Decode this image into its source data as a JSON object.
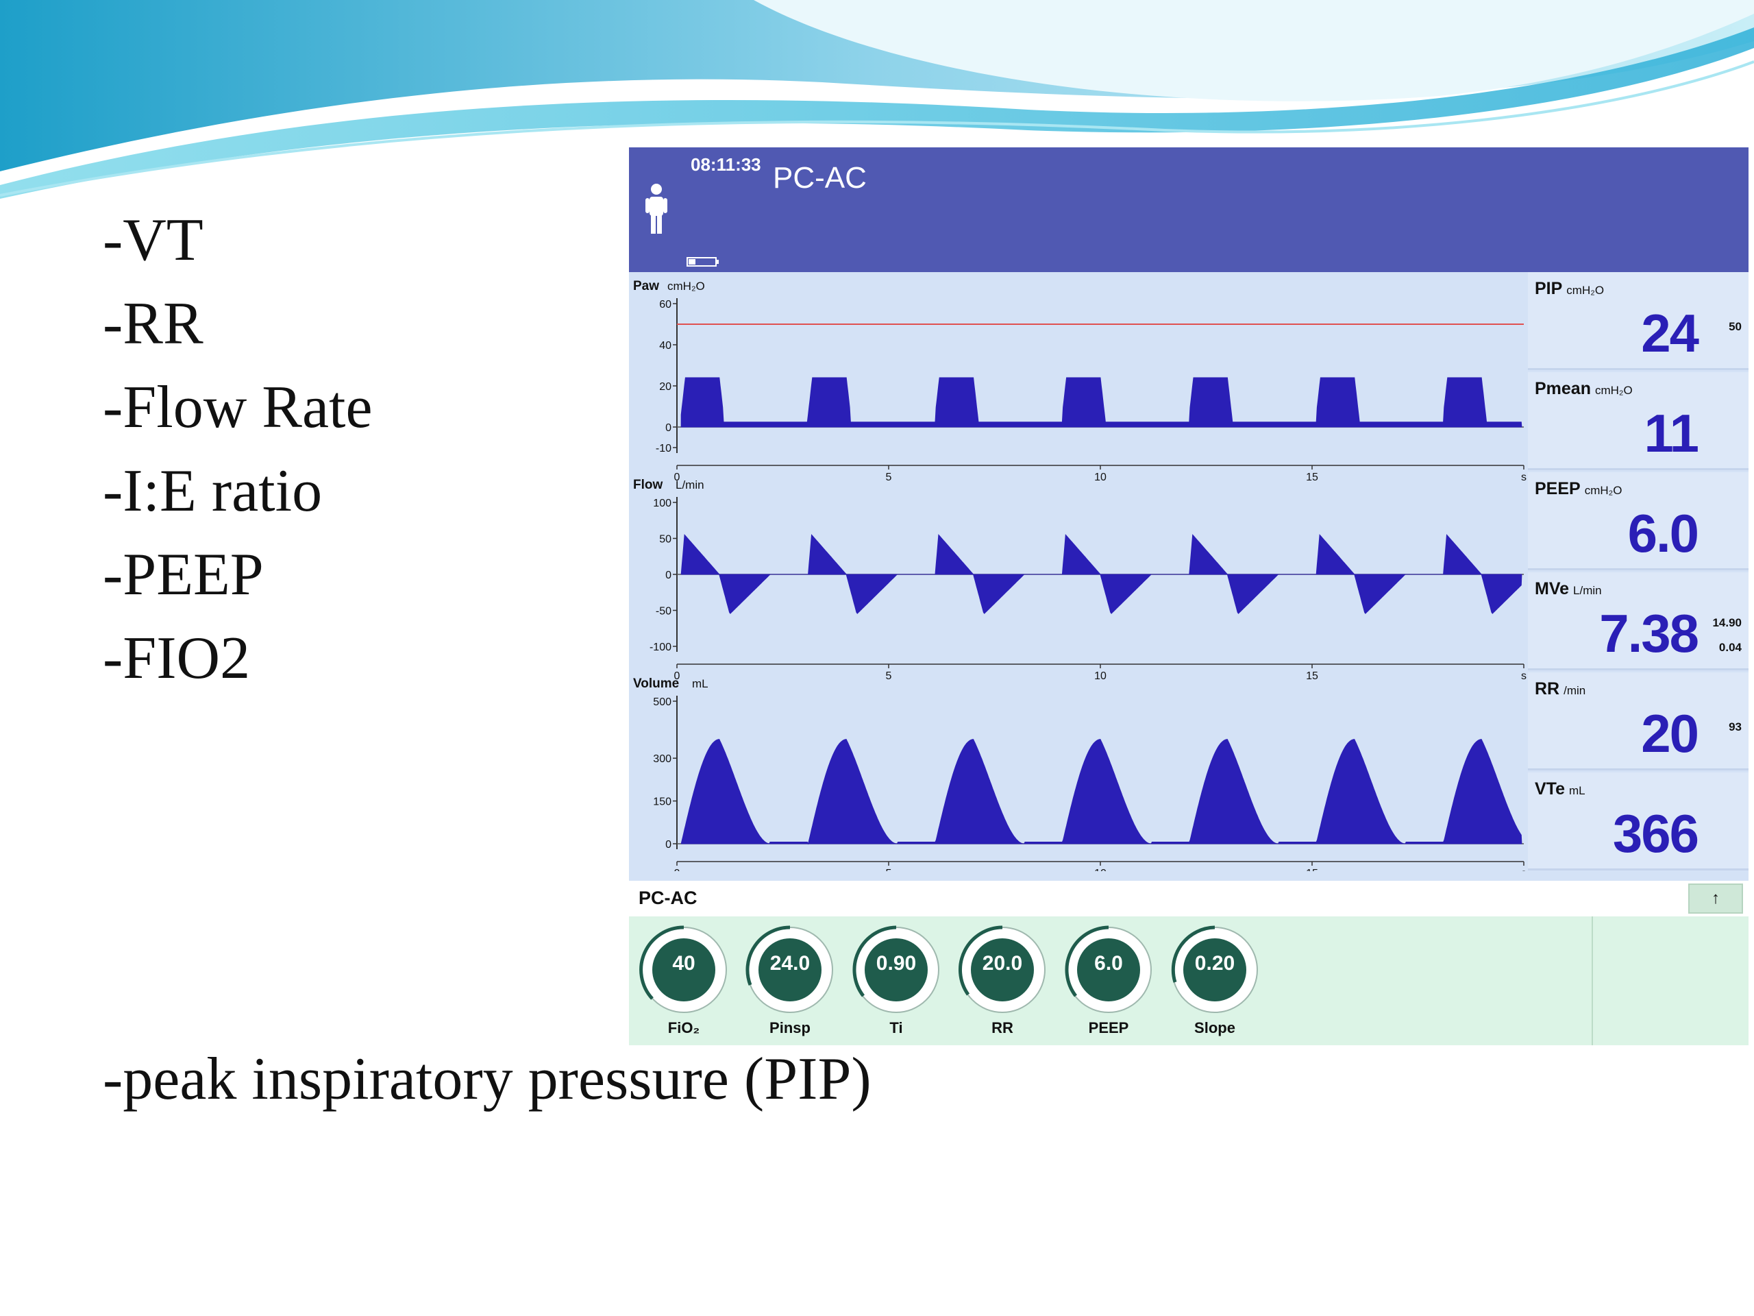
{
  "slide": {
    "bullets": [
      "-VT",
      "-RR",
      "-Flow Rate",
      "-I:E ratio",
      "-PEEP",
      "-FIO2"
    ],
    "pip_note": "-peak inspiratory pressure (PIP)"
  },
  "ventilator": {
    "time": "08:11:33",
    "mode": "PC-AC",
    "mode_bar_label": "PC-AC",
    "mode_bar_button": "↑",
    "colors": {
      "header": "#5059b2",
      "waveform": "#2a1fb6",
      "value": "#2a1fb6",
      "alarm_line": "#e05050"
    },
    "waveforms": {
      "x_tick_labels": [
        "0",
        "5",
        "10",
        "15",
        "s"
      ],
      "x_range": [
        0,
        20
      ],
      "breath_period_s": 3,
      "paw": {
        "label": "Paw",
        "unit": "cmH₂O",
        "y_ticks": [
          "60",
          "40",
          "20",
          "0",
          "-10"
        ],
        "ylim": [
          -10,
          60
        ],
        "peak": 24,
        "baseline": 6,
        "alarm_limit": 50
      },
      "flow": {
        "label": "Flow",
        "unit": "L/min",
        "y_ticks": [
          "100",
          "50",
          "0",
          "-50",
          "-100"
        ],
        "ylim": [
          -100,
          100
        ],
        "insp_peak": 55,
        "exp_peak": -55
      },
      "volume": {
        "label": "Volume",
        "unit": "mL",
        "y_ticks": [
          "500",
          "300",
          "150",
          "0"
        ],
        "ylim": [
          0,
          500
        ],
        "peak": 366
      }
    },
    "parameters": [
      {
        "label": "PIP",
        "unit": "cmH₂O",
        "value": "24",
        "limits": [
          "50"
        ]
      },
      {
        "label": "Pmean",
        "unit": "cmH₂O",
        "value": "11",
        "limits": []
      },
      {
        "label": "PEEP",
        "unit": "cmH₂O",
        "value": "6.0",
        "limits": []
      },
      {
        "label": "MVe",
        "unit": "L/min",
        "value": "7.38",
        "limits": [
          "14.90",
          "0.04"
        ]
      },
      {
        "label": "RR",
        "unit": "/min",
        "value": "20",
        "limits": [
          "93"
        ]
      },
      {
        "label": "VTe",
        "unit": "mL",
        "value": "366",
        "limits": []
      }
    ],
    "settings": [
      {
        "label": "FiO₂",
        "value": "40"
      },
      {
        "label": "Pinsp",
        "value": "24.0"
      },
      {
        "label": "Ti",
        "value": "0.90"
      },
      {
        "label": "RR",
        "value": "20.0"
      },
      {
        "label": "PEEP",
        "value": "6.0"
      },
      {
        "label": "Slope",
        "value": "0.20"
      }
    ]
  }
}
